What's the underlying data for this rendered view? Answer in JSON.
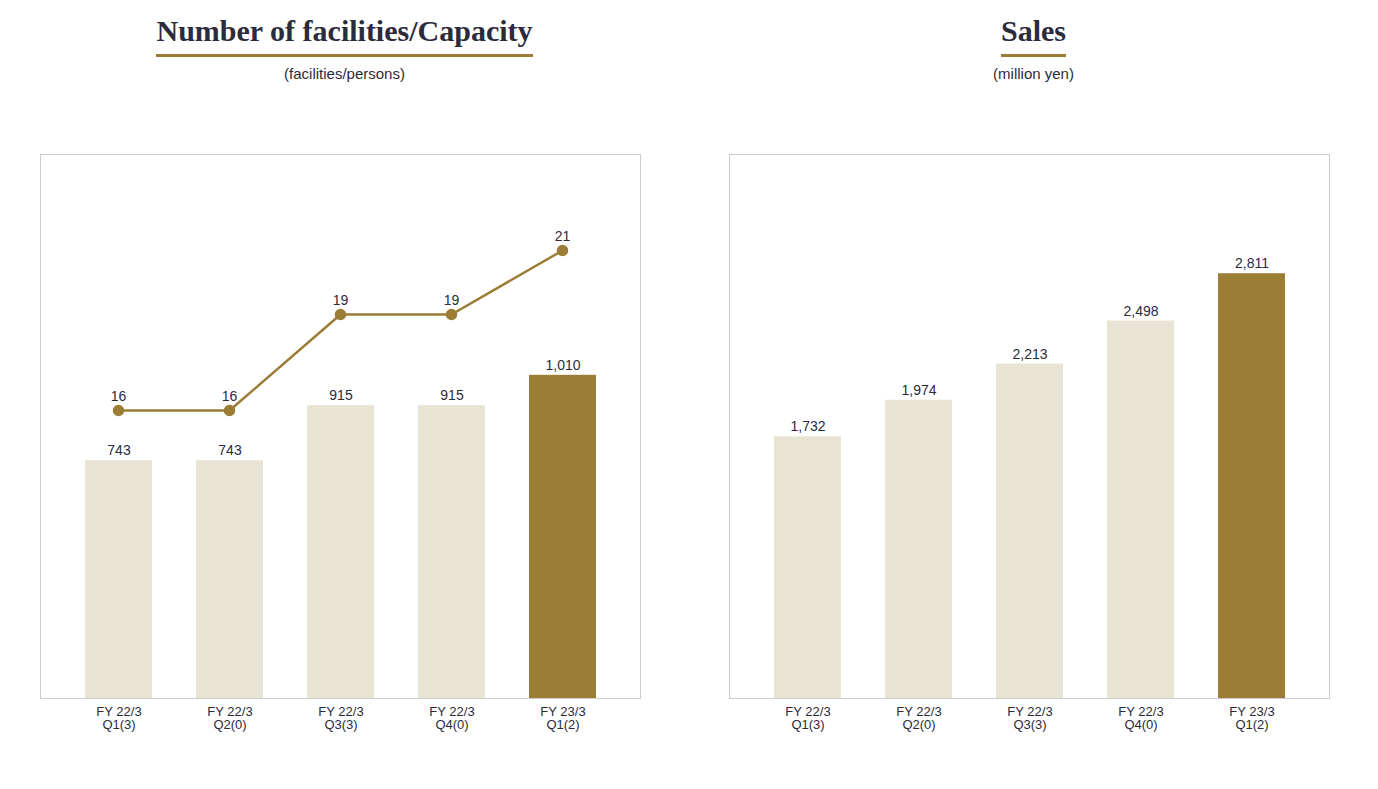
{
  "chart_data": [
    {
      "type": "bar",
      "title": "Number of facilities/Capacity",
      "subtitle": "(facilities/persons)",
      "categories": [
        "FY 22/3\nQ1(3)",
        "FY 22/3\nQ2(0)",
        "FY 22/3\nQ3(3)",
        "FY 22/3\nQ4(0)",
        "FY 23/3\nQ1(2)"
      ],
      "series": [
        {
          "type": "bar",
          "colors": [
            "#e8e4d4",
            "#e8e4d4",
            "#e8e4d4",
            "#e8e4d4",
            "#9b7d35"
          ],
          "values": [
            743,
            743,
            915,
            915,
            1010
          ],
          "value_labels": [
            "743",
            "743",
            "915",
            "915",
            "1,010"
          ]
        },
        {
          "type": "line",
          "axis": "y2",
          "color": "#9b7d35",
          "marker": "circle",
          "values": [
            16,
            16,
            19,
            19,
            21
          ]
        }
      ],
      "ylim": [
        0,
        1700
      ],
      "y2lim": [
        7.0,
        24.0
      ],
      "grid": false,
      "tick_labels": "x",
      "data_labels": true
    },
    {
      "type": "bar",
      "title": "Sales",
      "subtitle": "(million yen)",
      "categories": [
        "FY 22/3\nQ1(3)",
        "FY 22/3\nQ2(0)",
        "FY 22/3\nQ3(3)",
        "FY 22/3\nQ4(0)",
        "FY 23/3\nQ1(2)"
      ],
      "colors": [
        "#e8e4d4",
        "#e8e4d4",
        "#e8e4d4",
        "#e8e4d4",
        "#9b7d35"
      ],
      "values": [
        1732,
        1974,
        2213,
        2498,
        2811
      ],
      "value_labels": [
        "1,732",
        "1,974",
        "2,213",
        "2,498",
        "2,811"
      ],
      "ylim": [
        0,
        3600
      ],
      "grid": false,
      "tick_labels": "x",
      "data_labels": true
    }
  ]
}
